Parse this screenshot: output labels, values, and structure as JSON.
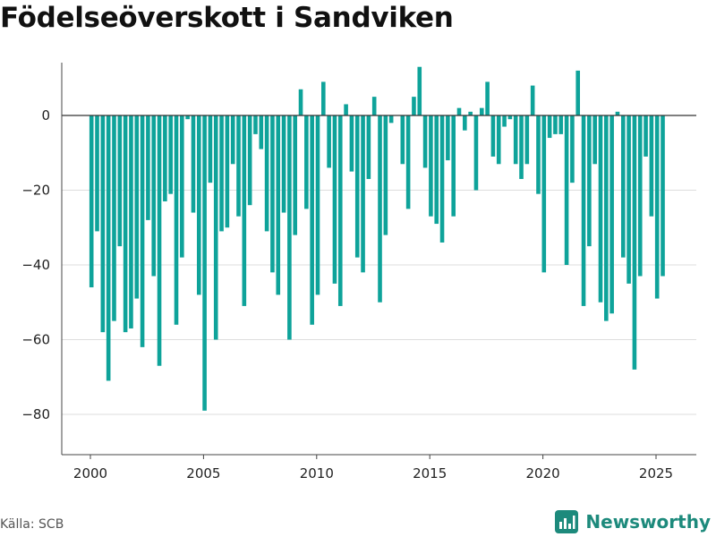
{
  "title": "Födelseöverskott i Sandviken",
  "source": "Källa: SCB",
  "brand": {
    "name": "Newsworthy",
    "icon": "newsworthy-logo-icon"
  },
  "colors": {
    "bar": "#0ea39a",
    "grid": "#dddddd",
    "zero_line": "#333333",
    "axis": "#444444",
    "brand": "#1d8a7c"
  },
  "chart_data": {
    "type": "bar",
    "title": "Födelseöverskott i Sandviken",
    "xlabel": "",
    "ylabel": "",
    "ylim": [
      -90,
      13
    ],
    "xlim": [
      1999.5,
      2026.7
    ],
    "grid": true,
    "yticks": [
      -80,
      -60,
      -40,
      -20,
      0
    ],
    "ytick_labels": [
      "−80",
      "−60",
      "−40",
      "−20",
      "0"
    ],
    "xticks": [
      2000,
      2005,
      2010,
      2015,
      2020,
      2025
    ],
    "xtick_labels": [
      "2000",
      "2005",
      "2010",
      "2015",
      "2020",
      "2025"
    ],
    "x": [
      "2000-01",
      "2000-04",
      "2000-07",
      "2000-10",
      "2001-01",
      "2001-04",
      "2001-07",
      "2001-10",
      "2002-01",
      "2002-04",
      "2002-07",
      "2002-10",
      "2003-01",
      "2003-04",
      "2003-07",
      "2003-10",
      "2004-01",
      "2004-04",
      "2004-07",
      "2004-10",
      "2005-01",
      "2005-04",
      "2005-07",
      "2005-10",
      "2006-01",
      "2006-04",
      "2006-07",
      "2006-10",
      "2007-01",
      "2007-04",
      "2007-07",
      "2007-10",
      "2008-01",
      "2008-04",
      "2008-07",
      "2008-10",
      "2009-01",
      "2009-04",
      "2009-07",
      "2009-10",
      "2010-01",
      "2010-04",
      "2010-07",
      "2010-10",
      "2011-01",
      "2011-04",
      "2011-07",
      "2011-10",
      "2012-01",
      "2012-04",
      "2012-07",
      "2012-10",
      "2013-01",
      "2013-04",
      "2013-07",
      "2013-10",
      "2014-01",
      "2014-04",
      "2014-07",
      "2014-10",
      "2015-01",
      "2015-04",
      "2015-07",
      "2015-10",
      "2016-01",
      "2016-04",
      "2016-07",
      "2016-10",
      "2017-01",
      "2017-04",
      "2017-07",
      "2017-10",
      "2018-01",
      "2018-04",
      "2018-07",
      "2018-10",
      "2019-01",
      "2019-04",
      "2019-07",
      "2019-10",
      "2020-01",
      "2020-04",
      "2020-07",
      "2020-10",
      "2021-01",
      "2021-04",
      "2021-07",
      "2021-10",
      "2022-01",
      "2022-04",
      "2022-07",
      "2022-10",
      "2023-01",
      "2023-04",
      "2023-07",
      "2023-10",
      "2024-01",
      "2024-04",
      "2024-07",
      "2024-10",
      "2025-01",
      "2025-04"
    ],
    "values": [
      -46,
      -31,
      -58,
      -71,
      -55,
      -35,
      -58,
      -57,
      -49,
      -62,
      -28,
      -43,
      -67,
      -23,
      -21,
      -56,
      -38,
      -1,
      -26,
      -48,
      -79,
      -18,
      -60,
      -31,
      -30,
      -13,
      -27,
      -51,
      -24,
      -5,
      -9,
      -31,
      -42,
      -48,
      -26,
      -60,
      -32,
      7,
      -25,
      -56,
      -48,
      9,
      -14,
      -45,
      -51,
      3,
      -15,
      -38,
      -42,
      -17,
      5,
      -50,
      -32,
      -2,
      0,
      -13,
      -25,
      5,
      13,
      -14,
      -27,
      -29,
      -34,
      -12,
      -27,
      2,
      -4,
      1,
      -20,
      2,
      9,
      -11,
      -13,
      -3,
      -1,
      -13,
      -17,
      -13,
      8,
      -21,
      -42,
      -6,
      -5,
      -5,
      -40,
      -18,
      12,
      -51,
      -35,
      -13,
      -50,
      -55,
      -53,
      1,
      -38,
      -45,
      -68,
      -43,
      -11,
      -27,
      -49,
      -43
    ]
  }
}
